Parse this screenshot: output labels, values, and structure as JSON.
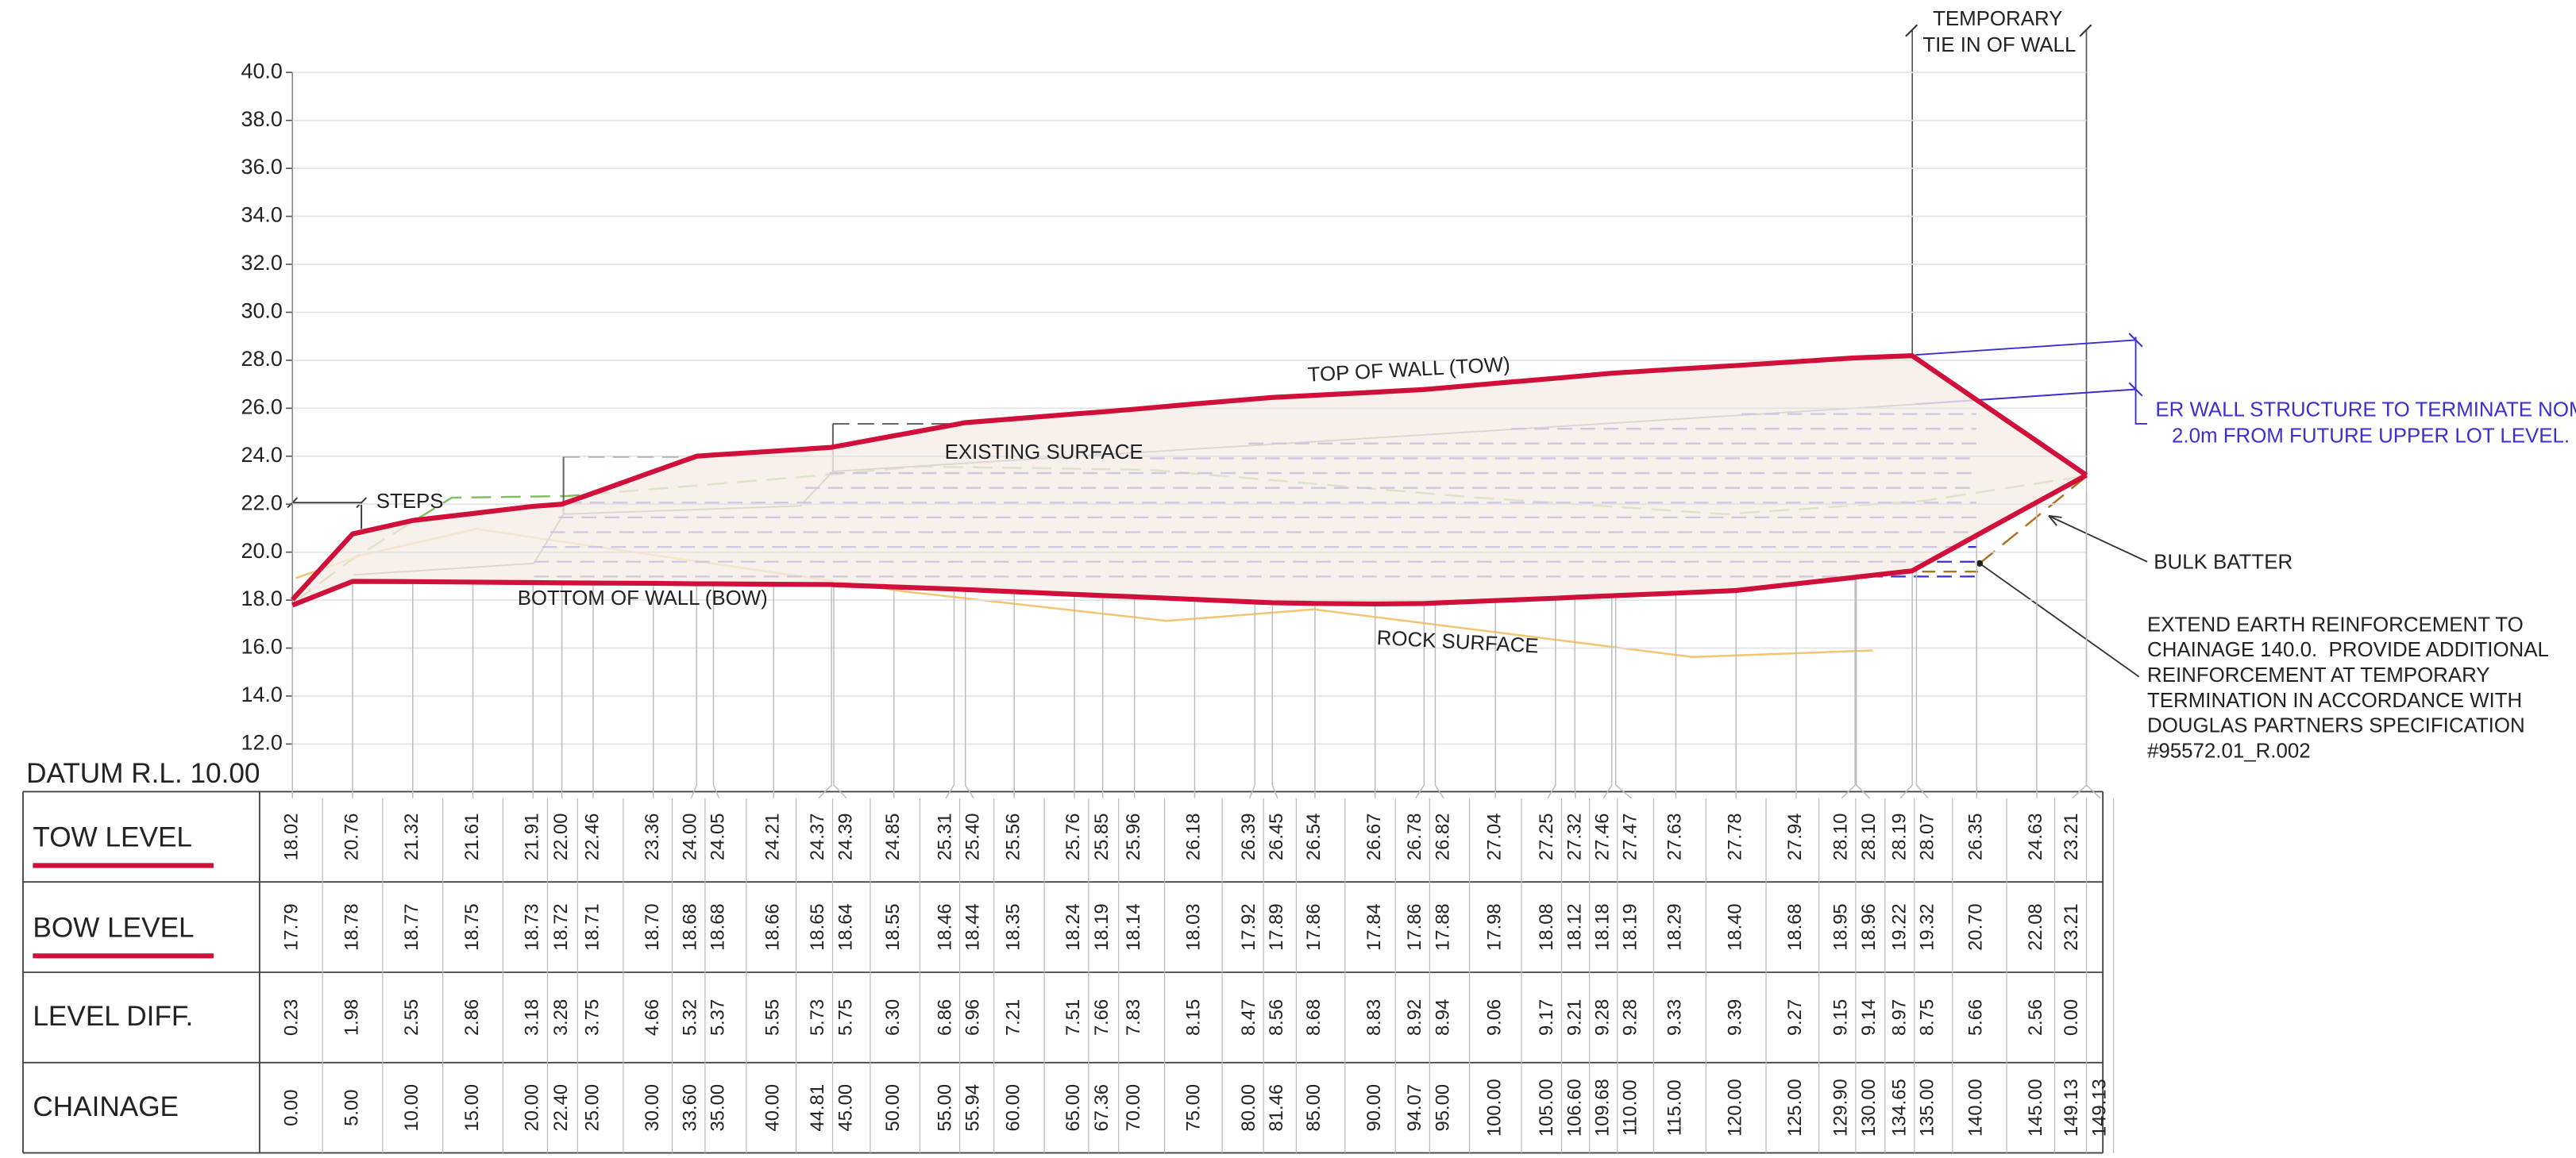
{
  "axis": {
    "datum": "DATUM R.L. 10.00",
    "ticks": [
      {
        "value": 12,
        "label": "12.0"
      },
      {
        "value": 14,
        "label": "14.0"
      },
      {
        "value": 16,
        "label": "16.0"
      },
      {
        "value": 18,
        "label": "18.0"
      },
      {
        "value": 20,
        "label": "20.0"
      },
      {
        "value": 22,
        "label": "22.0"
      },
      {
        "value": 24,
        "label": "24.0"
      },
      {
        "value": 26,
        "label": "26.0"
      },
      {
        "value": 28,
        "label": "28.0"
      },
      {
        "value": 30,
        "label": "30.0"
      },
      {
        "value": 32,
        "label": "32.0"
      },
      {
        "value": 34,
        "label": "34.0"
      },
      {
        "value": 36,
        "label": "36.0"
      },
      {
        "value": 38,
        "label": "38.0"
      },
      {
        "value": 40,
        "label": "40.0"
      }
    ]
  },
  "annotations": {
    "top_of_wall": "TOP OF WALL (TOW)",
    "existing_surface": "EXISTING SURFACE",
    "steps": "STEPS",
    "bottom_of_wall": "BOTTOM OF WALL (BOW)",
    "rock_surface": "ROCK SURFACE",
    "tie_in": [
      "TEMPORARY",
      "TIE IN OF WALL"
    ],
    "terminate": [
      "ER WALL STRUCTURE TO TERMINATE NOM",
      "2.0m FROM FUTURE UPPER LOT LEVEL."
    ],
    "bulk_batter": "BULK BATTER",
    "note": [
      "EXTEND EARTH REINFORCEMENT TO",
      "CHAINAGE 140.0.  PROVIDE ADDITIONAL",
      "REINFORCEMENT AT TEMPORARY",
      "TERMINATION IN ACCORDANCE WITH",
      "DOUGLAS PARTNERS SPECIFICATION",
      "#95572.01_R.002"
    ]
  },
  "table": {
    "row_headers": [
      "TOW LEVEL",
      "BOW LEVEL",
      "LEVEL DIFF.",
      "CHAINAGE"
    ],
    "columns": [
      {
        "chainage": "0.00",
        "tow": "18.02",
        "bow": "17.79",
        "diff": "0.23"
      },
      {
        "chainage": "5.00",
        "tow": "20.76",
        "bow": "18.78",
        "diff": "1.98"
      },
      {
        "chainage": "10.00",
        "tow": "21.32",
        "bow": "18.77",
        "diff": "2.55"
      },
      {
        "chainage": "15.00",
        "tow": "21.61",
        "bow": "18.75",
        "diff": "2.86"
      },
      {
        "chainage": "20.00",
        "tow": "21.91",
        "bow": "18.73",
        "diff": "3.18"
      },
      {
        "chainage": "22.40",
        "tow": "22.00",
        "bow": "18.72",
        "diff": "3.28"
      },
      {
        "chainage": "25.00",
        "tow": "22.46",
        "bow": "18.71",
        "diff": "3.75"
      },
      {
        "chainage": "30.00",
        "tow": "23.36",
        "bow": "18.70",
        "diff": "4.66"
      },
      {
        "chainage": "33.60",
        "tow": "24.00",
        "bow": "18.68",
        "diff": "5.32"
      },
      {
        "chainage": "35.00",
        "tow": "24.05",
        "bow": "18.68",
        "diff": "5.37"
      },
      {
        "chainage": "40.00",
        "tow": "24.21",
        "bow": "18.66",
        "diff": "5.55"
      },
      {
        "chainage": "44.81",
        "tow": "24.37",
        "bow": "18.65",
        "diff": "5.73"
      },
      {
        "chainage": "45.00",
        "tow": "24.39",
        "bow": "18.64",
        "diff": "5.75"
      },
      {
        "chainage": "50.00",
        "tow": "24.85",
        "bow": "18.55",
        "diff": "6.30"
      },
      {
        "chainage": "55.00",
        "tow": "25.31",
        "bow": "18.46",
        "diff": "6.86"
      },
      {
        "chainage": "55.94",
        "tow": "25.40",
        "bow": "18.44",
        "diff": "6.96"
      },
      {
        "chainage": "60.00",
        "tow": "25.56",
        "bow": "18.35",
        "diff": "7.21"
      },
      {
        "chainage": "65.00",
        "tow": "25.76",
        "bow": "18.24",
        "diff": "7.51"
      },
      {
        "chainage": "67.36",
        "tow": "25.85",
        "bow": "18.19",
        "diff": "7.66"
      },
      {
        "chainage": "70.00",
        "tow": "25.96",
        "bow": "18.14",
        "diff": "7.83"
      },
      {
        "chainage": "75.00",
        "tow": "26.18",
        "bow": "18.03",
        "diff": "8.15"
      },
      {
        "chainage": "80.00",
        "tow": "26.39",
        "bow": "17.92",
        "diff": "8.47"
      },
      {
        "chainage": "81.46",
        "tow": "26.45",
        "bow": "17.89",
        "diff": "8.56"
      },
      {
        "chainage": "85.00",
        "tow": "26.54",
        "bow": "17.86",
        "diff": "8.68"
      },
      {
        "chainage": "90.00",
        "tow": "26.67",
        "bow": "17.84",
        "diff": "8.83"
      },
      {
        "chainage": "94.07",
        "tow": "26.78",
        "bow": "17.86",
        "diff": "8.92"
      },
      {
        "chainage": "95.00",
        "tow": "26.82",
        "bow": "17.88",
        "diff": "8.94"
      },
      {
        "chainage": "100.00",
        "tow": "27.04",
        "bow": "17.98",
        "diff": "9.06"
      },
      {
        "chainage": "105.00",
        "tow": "27.25",
        "bow": "18.08",
        "diff": "9.17"
      },
      {
        "chainage": "106.60",
        "tow": "27.32",
        "bow": "18.12",
        "diff": "9.21"
      },
      {
        "chainage": "109.68",
        "tow": "27.46",
        "bow": "18.18",
        "diff": "9.28"
      },
      {
        "chainage": "110.00",
        "tow": "27.47",
        "bow": "18.19",
        "diff": "9.28"
      },
      {
        "chainage": "115.00",
        "tow": "27.63",
        "bow": "18.29",
        "diff": "9.33"
      },
      {
        "chainage": "120.00",
        "tow": "27.78",
        "bow": "18.40",
        "diff": "9.39"
      },
      {
        "chainage": "125.00",
        "tow": "27.94",
        "bow": "18.68",
        "diff": "9.27"
      },
      {
        "chainage": "129.90",
        "tow": "28.10",
        "bow": "18.95",
        "diff": "9.15"
      },
      {
        "chainage": "130.00",
        "tow": "28.10",
        "bow": "18.96",
        "diff": "9.14"
      },
      {
        "chainage": "134.65",
        "tow": "28.19",
        "bow": "19.22",
        "diff": "8.97"
      },
      {
        "chainage": "135.00",
        "tow": "28.07",
        "bow": "19.32",
        "diff": "8.75"
      },
      {
        "chainage": "140.00",
        "tow": "26.35",
        "bow": "20.70",
        "diff": "5.66"
      },
      {
        "chainage": "145.00",
        "tow": "24.63",
        "bow": "22.08",
        "diff": "2.56"
      },
      {
        "chainage": "149.13",
        "tow": "23.21",
        "bow": "23.21",
        "diff": "0.00"
      },
      {
        "chainage": "149.13",
        "tow": null,
        "bow": null,
        "diff": null
      }
    ]
  }
}
